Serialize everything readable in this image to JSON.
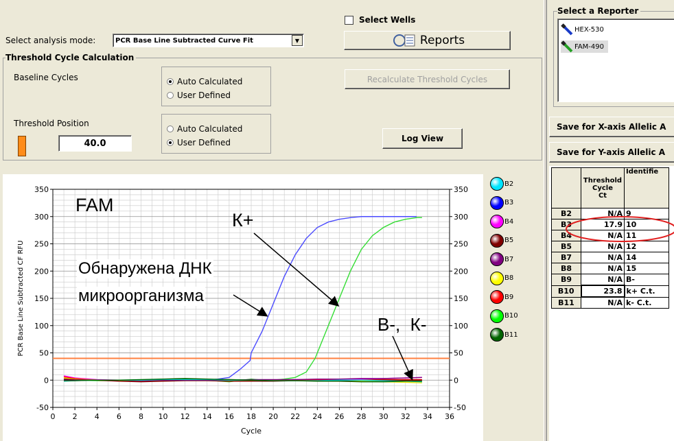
{
  "header": {
    "analysis_mode_label": "Select analysis mode:",
    "analysis_mode_value": "PCR Base Line Subtracted Curve Fit",
    "select_wells_label": "Select Wells",
    "reports_label": "Reports"
  },
  "threshold_group": {
    "title": "Threshold Cycle Calculation",
    "baseline_label": "Baseline Cycles",
    "baseline_options": [
      "Auto Calculated",
      "User Defined"
    ],
    "baseline_selected": "Auto Calculated",
    "recalc_button": "Recalculate Threshold Cycles",
    "threshold_position_label": "Threshold Position",
    "threshold_value": "40.0",
    "threshold_options": [
      "Auto Calculated",
      "User Defined"
    ],
    "threshold_selected": "User Defined",
    "log_view_button": "Log View"
  },
  "reporter": {
    "title": "Select a Reporter",
    "items": [
      {
        "label": "HEX-530",
        "color": "#1a3cc8"
      },
      {
        "label": "FAM-490",
        "color": "#22a022"
      }
    ],
    "save_x_button": "Save for X-axis Allelic A",
    "save_y_button": "Save for Y-axis Allelic A"
  },
  "plot_annotations": {
    "fam": "FAM",
    "k_plus": "К+",
    "dna_line1": "Обнаружена ДНК",
    "dna_line2": "микроорганизма",
    "neg": "В-,  К-"
  },
  "wells_legend": [
    {
      "label": "B2",
      "color": "#00e5ff"
    },
    {
      "label": "B3",
      "color": "#0000ff"
    },
    {
      "label": "B4",
      "color": "#ff00ff"
    },
    {
      "label": "B5",
      "color": "#800000"
    },
    {
      "label": "B7",
      "color": "#800080"
    },
    {
      "label": "B8",
      "color": "#ffff00"
    },
    {
      "label": "B9",
      "color": "#ff0000"
    },
    {
      "label": "B10",
      "color": "#00ff00"
    },
    {
      "label": "B11",
      "color": "#006400"
    }
  ],
  "ct_table": {
    "col_header_ct": "Threshold Cycle Ct",
    "col_header_ct_lines": [
      "Threshold",
      "Cycle",
      "Ct"
    ],
    "col_header_id": "Identifie",
    "rows": [
      {
        "well": "B2",
        "ct": "N/A",
        "id": "9"
      },
      {
        "well": "B3",
        "ct": "17.9",
        "id": "10"
      },
      {
        "well": "B4",
        "ct": "N/A",
        "id": "11"
      },
      {
        "well": "B5",
        "ct": "N/A",
        "id": "12"
      },
      {
        "well": "B7",
        "ct": "N/A",
        "id": "14"
      },
      {
        "well": "B8",
        "ct": "N/A",
        "id": "15"
      },
      {
        "well": "B9",
        "ct": "N/A",
        "id": "B-"
      },
      {
        "well": "B10",
        "ct": "23.8",
        "id": "k+ C.t."
      },
      {
        "well": "B11",
        "ct": "N/A",
        "id": "k- C.t."
      }
    ]
  },
  "chart_data": {
    "type": "line",
    "xlabel": "Cycle",
    "ylabel": "PCR Base Line Subtracted CF RFU",
    "xlim": [
      0,
      36
    ],
    "ylim": [
      -50,
      350
    ],
    "xticks": [
      0,
      2,
      4,
      6,
      8,
      10,
      12,
      14,
      16,
      18,
      20,
      22,
      24,
      26,
      28,
      30,
      32,
      34,
      36
    ],
    "yticks": [
      -50,
      0,
      50,
      100,
      150,
      200,
      250,
      300,
      350
    ],
    "grid": true,
    "threshold": 40,
    "threshold_color": "#ff8040",
    "series": [
      {
        "name": "B3",
        "color": "#4a4aff",
        "x": [
          1,
          2,
          4,
          6,
          8,
          10,
          12,
          14,
          15,
          16,
          17,
          17.9,
          18,
          19,
          20,
          21,
          22,
          23,
          24,
          25,
          26,
          27,
          28,
          29,
          30,
          31,
          32,
          33
        ],
        "y": [
          2,
          1,
          0,
          0,
          -1,
          0,
          1,
          0,
          2,
          5,
          20,
          36,
          50,
          90,
          140,
          190,
          230,
          260,
          280,
          290,
          295,
          298,
          300,
          300,
          300,
          300,
          300,
          300
        ]
      },
      {
        "name": "B10",
        "color": "#33dd33",
        "x": [
          1,
          2,
          4,
          6,
          8,
          10,
          12,
          14,
          16,
          18,
          19,
          20,
          21,
          22,
          23,
          23.8,
          24,
          25,
          26,
          27,
          28,
          29,
          30,
          31,
          32,
          33,
          33.5
        ],
        "y": [
          0,
          0,
          -1,
          -1,
          0,
          2,
          2,
          0,
          -3,
          2,
          0,
          0,
          2,
          5,
          15,
          40,
          50,
          100,
          150,
          200,
          240,
          265,
          280,
          290,
          295,
          298,
          298
        ]
      },
      {
        "name": "B4",
        "color": "#ff00ff",
        "x": [
          1,
          2,
          4,
          6,
          8,
          10,
          12,
          14,
          16,
          18,
          20,
          22,
          24,
          26,
          28,
          30,
          32,
          33.5
        ],
        "y": [
          8,
          4,
          1,
          0,
          0,
          -1,
          0,
          0,
          0,
          0,
          0,
          1,
          1,
          2,
          2,
          3,
          4,
          5
        ]
      },
      {
        "name": "B9",
        "color": "#ff0000",
        "x": [
          1,
          2,
          4,
          6,
          8,
          10,
          12,
          14,
          16,
          18,
          20,
          22,
          24,
          26,
          28,
          30,
          32,
          33.5
        ],
        "y": [
          6,
          3,
          0,
          -1,
          -2,
          -1,
          0,
          1,
          1,
          0,
          0,
          0,
          0,
          0,
          0,
          1,
          1,
          1
        ]
      },
      {
        "name": "B8",
        "color": "#e6e600",
        "x": [
          1,
          2,
          4,
          6,
          8,
          10,
          12,
          14,
          16,
          18,
          20,
          22,
          24,
          26,
          28,
          30,
          32,
          33.5
        ],
        "y": [
          4,
          2,
          0,
          -1,
          -1,
          0,
          0,
          0,
          -1,
          -1,
          -1,
          -1,
          -1,
          -2,
          -2,
          -3,
          -4,
          -5
        ]
      },
      {
        "name": "B5",
        "color": "#800000",
        "x": [
          1,
          2,
          4,
          6,
          8,
          10,
          12,
          14,
          16,
          18,
          20,
          22,
          24,
          26,
          28,
          30,
          32,
          33.5
        ],
        "y": [
          2,
          1,
          0,
          -2,
          -3,
          -2,
          -1,
          -1,
          -2,
          -2,
          -2,
          -1,
          -1,
          -1,
          0,
          0,
          0,
          0
        ]
      },
      {
        "name": "B7",
        "color": "#800080",
        "x": [
          1,
          2,
          4,
          6,
          8,
          10,
          12,
          14,
          16,
          18,
          20,
          22,
          24,
          26,
          28,
          30,
          32,
          33.5
        ],
        "y": [
          0,
          0,
          0,
          0,
          -1,
          0,
          0,
          0,
          0,
          1,
          1,
          1,
          2,
          2,
          3,
          3,
          4,
          5
        ]
      },
      {
        "name": "B2",
        "color": "#00cccc",
        "x": [
          1,
          2,
          4,
          6,
          8,
          10,
          12,
          14,
          16,
          18,
          20,
          22,
          24,
          26,
          28,
          30,
          32,
          33.5
        ],
        "y": [
          -2,
          -1,
          0,
          0,
          0,
          1,
          1,
          1,
          0,
          0,
          -1,
          -1,
          -1,
          0,
          0,
          -1,
          -2,
          -3
        ]
      },
      {
        "name": "B11",
        "color": "#006400",
        "x": [
          1,
          2,
          4,
          6,
          8,
          10,
          12,
          14,
          16,
          18,
          20,
          22,
          24,
          26,
          28,
          30,
          32,
          33.5
        ],
        "y": [
          -1,
          -1,
          0,
          0,
          1,
          2,
          3,
          2,
          1,
          0,
          -1,
          -1,
          -2,
          -2,
          -3,
          -3,
          -2,
          -2
        ]
      }
    ]
  }
}
